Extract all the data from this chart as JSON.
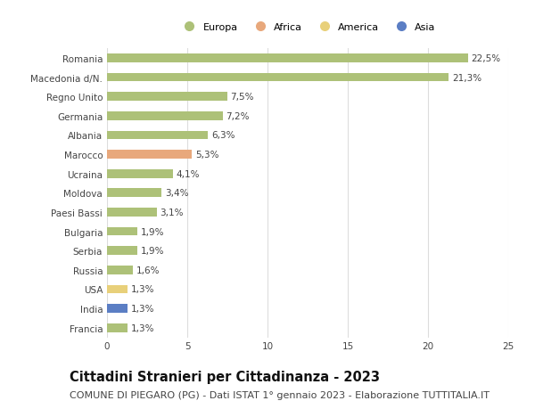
{
  "categories": [
    "Francia",
    "India",
    "USA",
    "Russia",
    "Serbia",
    "Bulgaria",
    "Paesi Bassi",
    "Moldova",
    "Ucraina",
    "Marocco",
    "Albania",
    "Germania",
    "Regno Unito",
    "Macedonia d/N.",
    "Romania"
  ],
  "values": [
    1.3,
    1.3,
    1.3,
    1.6,
    1.9,
    1.9,
    3.1,
    3.4,
    4.1,
    5.3,
    6.3,
    7.2,
    7.5,
    21.3,
    22.5
  ],
  "continents": [
    "Europa",
    "Asia",
    "America",
    "Europa",
    "Europa",
    "Europa",
    "Europa",
    "Europa",
    "Europa",
    "Africa",
    "Europa",
    "Europa",
    "Europa",
    "Europa",
    "Europa"
  ],
  "colors": {
    "Europa": "#adc178",
    "Africa": "#e8a87c",
    "America": "#e8d07a",
    "Asia": "#5b7ec4"
  },
  "xlim": [
    0,
    25
  ],
  "xticks": [
    0,
    5,
    10,
    15,
    20,
    25
  ],
  "title": "Cittadini Stranieri per Cittadinanza - 2023",
  "subtitle": "COMUNE DI PIEGARO (PG) - Dati ISTAT 1° gennaio 2023 - Elaborazione TUTTITALIA.IT",
  "background_color": "#ffffff",
  "grid_color": "#dddddd",
  "bar_height": 0.45,
  "title_fontsize": 10.5,
  "subtitle_fontsize": 8,
  "label_fontsize": 7.5,
  "value_fontsize": 7.5,
  "legend_order": [
    "Europa",
    "Africa",
    "America",
    "Asia"
  ]
}
